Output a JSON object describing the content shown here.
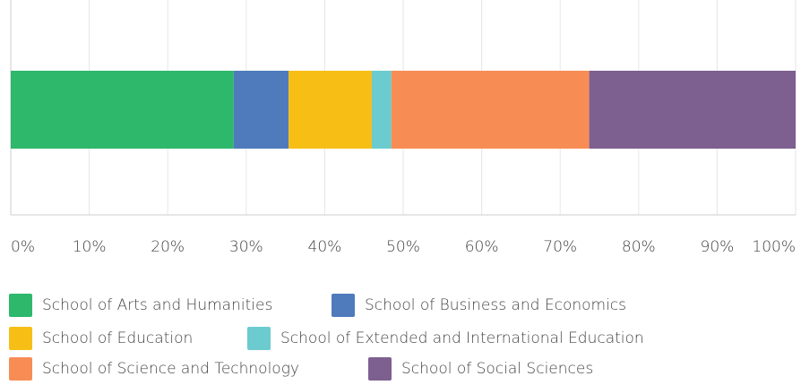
{
  "chart_data": {
    "type": "stacked-bar-horizontal",
    "categories": [
      null
    ],
    "series": [
      {
        "name": "School of Arts and Humanities",
        "color": "#2db86b",
        "values": [
          28.4
        ]
      },
      {
        "name": "School of Business and Economics",
        "color": "#4f7bbc",
        "values": [
          7.0
        ]
      },
      {
        "name": "School of Education",
        "color": "#f7bf16",
        "values": [
          10.6
        ]
      },
      {
        "name": "School of Extended and International Education",
        "color": "#6ccbcf",
        "values": [
          2.5
        ]
      },
      {
        "name": "School of Science and Technology",
        "color": "#f78d55",
        "values": [
          25.2
        ]
      },
      {
        "name": "School of Social Sciences",
        "color": "#7d5f90",
        "values": [
          26.3
        ]
      }
    ],
    "xlim": [
      0,
      100
    ],
    "xticks": [
      {
        "value": 0,
        "label": "0%"
      },
      {
        "value": 10,
        "label": "10%"
      },
      {
        "value": 20,
        "label": "20%"
      },
      {
        "value": 30,
        "label": "30%"
      },
      {
        "value": 40,
        "label": "40%"
      },
      {
        "value": 50,
        "label": "50%"
      },
      {
        "value": 60,
        "label": "60%"
      },
      {
        "value": 70,
        "label": "70%"
      },
      {
        "value": 80,
        "label": "80%"
      },
      {
        "value": 90,
        "label": "90%"
      },
      {
        "value": 100,
        "label": "100%"
      }
    ],
    "grid": true
  }
}
